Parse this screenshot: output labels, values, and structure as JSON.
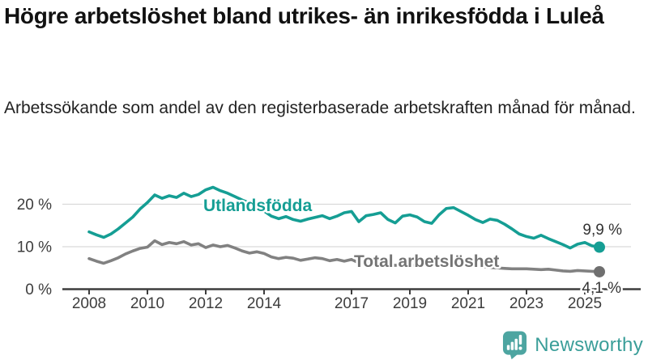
{
  "header": {
    "title": "Högre arbetslöshet bland utrikes- än inrikesfödda i Luleå",
    "subtitle": "Arbetssökande som andel av den registerbaserade arbetskraften månad för månad."
  },
  "chart_data": {
    "type": "line",
    "title": "Högre arbetslöshet bland utrikes- än inrikesfödda i Luleå",
    "subtitle": "Arbetssökande som andel av den registerbaserade arbetskraften månad för månad.",
    "xlabel": "",
    "ylabel": "",
    "ylim": [
      0,
      25
    ],
    "grid": "horizontal",
    "legend": "inline-labels",
    "x": [
      2008,
      2008.25,
      2008.5,
      2008.75,
      2009,
      2009.25,
      2009.5,
      2009.75,
      2010,
      2010.25,
      2010.5,
      2010.75,
      2011,
      2011.25,
      2011.5,
      2011.75,
      2012,
      2012.25,
      2012.5,
      2012.75,
      2013,
      2013.25,
      2013.5,
      2013.75,
      2014,
      2014.25,
      2014.5,
      2014.75,
      2015,
      2015.25,
      2015.5,
      2015.75,
      2016,
      2016.25,
      2016.5,
      2016.75,
      2017,
      2017.25,
      2017.5,
      2017.75,
      2018,
      2018.25,
      2018.5,
      2018.75,
      2019,
      2019.25,
      2019.5,
      2019.75,
      2020,
      2020.25,
      2020.5,
      2020.75,
      2021,
      2021.25,
      2021.5,
      2021.75,
      2022,
      2022.25,
      2022.5,
      2022.75,
      2023,
      2023.25,
      2023.5,
      2023.75,
      2024,
      2024.25,
      2024.5,
      2024.75,
      2025,
      2025.25,
      2025.5
    ],
    "series": [
      {
        "name": "Utlandsfödda",
        "color": "#159e94",
        "label_color": "#159e94",
        "dot_color": "#159e94",
        "end_label": "9,9 %",
        "end_value": 9.9,
        "values": [
          13.5,
          12.8,
          12.2,
          13.0,
          14.2,
          15.6,
          17.0,
          18.9,
          20.4,
          22.2,
          21.4,
          22.0,
          21.6,
          22.6,
          21.8,
          22.3,
          23.4,
          24.0,
          23.2,
          22.6,
          21.8,
          21.0,
          20.3,
          19.4,
          18.4,
          17.2,
          16.6,
          17.1,
          16.4,
          16.0,
          16.5,
          16.9,
          17.3,
          16.6,
          17.2,
          18.0,
          18.3,
          15.9,
          17.3,
          17.6,
          18.0,
          16.4,
          15.6,
          17.2,
          17.5,
          17.0,
          15.9,
          15.5,
          17.5,
          19.0,
          19.2,
          18.3,
          17.4,
          16.4,
          15.7,
          16.5,
          16.2,
          15.3,
          14.2,
          13.0,
          12.4,
          12.0,
          12.7,
          11.9,
          11.2,
          10.5,
          9.7,
          10.6,
          11.0,
          10.2,
          9.9
        ]
      },
      {
        "name": "Total arbetslöshet",
        "color": "#818181",
        "label_color": "#747474",
        "dot_color": "#6f6f6f",
        "end_label": "4,1 %",
        "end_value": 4.1,
        "values": [
          7.2,
          6.6,
          6.1,
          6.7,
          7.4,
          8.3,
          9.0,
          9.6,
          9.9,
          11.4,
          10.5,
          11.0,
          10.7,
          11.2,
          10.4,
          10.7,
          9.8,
          10.4,
          10.0,
          10.3,
          9.7,
          9.0,
          8.5,
          8.8,
          8.4,
          7.6,
          7.2,
          7.5,
          7.3,
          6.8,
          7.1,
          7.4,
          7.2,
          6.7,
          7.0,
          6.6,
          7.0,
          6.2,
          5.9,
          6.3,
          6.1,
          5.8,
          5.6,
          5.9,
          5.7,
          5.5,
          5.6,
          5.8,
          6.1,
          6.5,
          6.3,
          6.0,
          5.8,
          5.5,
          5.3,
          5.1,
          5.0,
          4.9,
          4.8,
          4.8,
          4.8,
          4.7,
          4.6,
          4.7,
          4.5,
          4.3,
          4.2,
          4.4,
          4.3,
          4.2,
          4.1
        ]
      }
    ],
    "yticks": [
      {
        "value": 0,
        "label": "0 %"
      },
      {
        "value": 10,
        "label": "10 %"
      },
      {
        "value": 20,
        "label": "20 %"
      }
    ],
    "xticks": [
      2008,
      2010,
      2012,
      2014,
      2017,
      2019,
      2021,
      2023,
      2025
    ],
    "colors": {
      "axis": "#3d3d3d",
      "grid": "#d9d9d9",
      "value_label": "#333333"
    }
  },
  "footer": {
    "brand": "Newsworthy",
    "brand_color": "#3a9e99",
    "icon": "newsworthy-bar-chart-speech-bubble-icon",
    "icon_color": "#4da5a1"
  }
}
